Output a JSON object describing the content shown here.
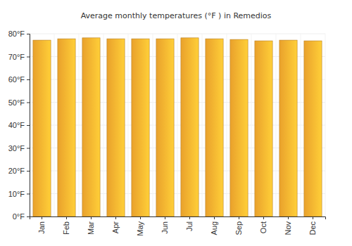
{
  "chart_data": {
    "type": "bar",
    "title": "Average monthly temperatures (°F ) in Remedios",
    "categories": [
      "Jan",
      "Feb",
      "Mar",
      "Apr",
      "May",
      "Jun",
      "Jul",
      "Aug",
      "Sep",
      "Oct",
      "Nov",
      "Dec"
    ],
    "values": [
      77.2,
      77.8,
      78.2,
      77.8,
      77.8,
      77.8,
      78.2,
      77.8,
      77.5,
      76.9,
      77.2,
      76.9
    ],
    "color": "#ffb030",
    "ylim": [
      0,
      80
    ],
    "yticks": [
      {
        "value": 0,
        "label": "0°F"
      },
      {
        "value": 10,
        "label": "10°F"
      },
      {
        "value": 20,
        "label": "20°F"
      },
      {
        "value": 30,
        "label": "30°F"
      },
      {
        "value": 40,
        "label": "40°F"
      },
      {
        "value": 50,
        "label": "50°F"
      },
      {
        "value": 60,
        "label": "60°F"
      },
      {
        "value": 70,
        "label": "70°F"
      },
      {
        "value": 80,
        "label": "80°F"
      }
    ],
    "grid": true
  }
}
